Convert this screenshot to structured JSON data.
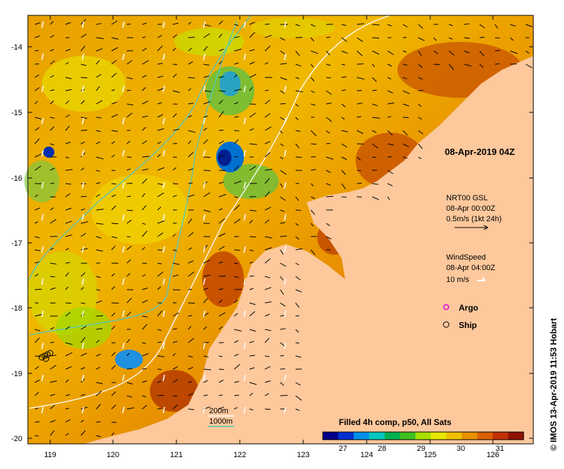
{
  "map": {
    "x_ticks": [
      "119",
      "120",
      "121",
      "122",
      "123",
      "124",
      "125",
      "126"
    ],
    "y_ticks": [
      "-14",
      "-15",
      "-16",
      "-17",
      "-18",
      "-19",
      "-20"
    ],
    "date_label": "08-Apr-2019 04Z",
    "currents": {
      "title": "NRT00 GSL",
      "time": "08-Apr 00:00Z",
      "scale": "0.5m/s (1kt 24h)"
    },
    "wind": {
      "title": "WindSpeed",
      "time": "08-Apr 04:00Z",
      "scale": "10 m/s"
    },
    "markers": {
      "argo_label": "Argo",
      "ship_label": "Ship",
      "argo_color": "#e000e0",
      "ship_color": "#000000"
    },
    "isobaths": {
      "shallow_label": "200m",
      "deep_label": "1000m",
      "shallow_color": "#ffffff",
      "deep_color": "#4fc9c0"
    },
    "colorbar": {
      "title": "Filled 4h comp, p50, All Sats",
      "ticks": [
        "27",
        "28",
        "29",
        "30",
        "31"
      ],
      "colors": [
        "#00008a",
        "#0030d0",
        "#0090e8",
        "#00c8c0",
        "#00b050",
        "#40c020",
        "#a8e000",
        "#e8e800",
        "#f0c000",
        "#e89000",
        "#d86000",
        "#c03000",
        "#901000"
      ]
    },
    "land_color": "#fdc89c",
    "credit": "© IMOS 13-Apr-2019 11:53 Hobart"
  }
}
